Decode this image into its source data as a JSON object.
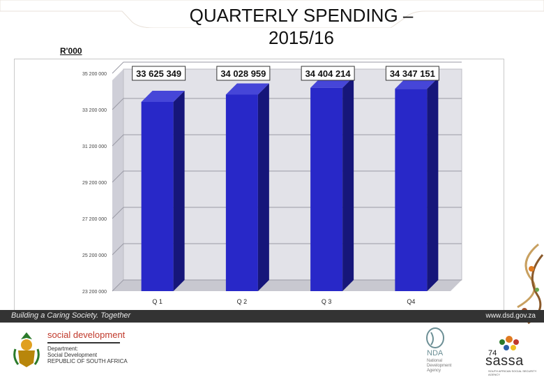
{
  "slide": {
    "title": "QUARTERLY SPENDING – 2015/16",
    "unit_label": "R'000",
    "page_number": "74"
  },
  "footer": {
    "tagline": "Building a Caring Society. Together",
    "website": "www.dsd.gov.za",
    "sd_brand": "social development",
    "sd_sub_line1": "Department:",
    "sd_sub_line2": "Social Development",
    "sd_sub_line3": "REPUBLIC OF SOUTH AFRICA",
    "nda_name": "NDA",
    "nda_sub_line1": "National",
    "nda_sub_line2": "Development",
    "nda_sub_line3": "Agency",
    "sassa_name": "sassa",
    "sassa_sub": "SOUTH AFRICAN SOCIAL SECURITY AGENCY"
  },
  "chart_data": {
    "type": "bar",
    "categories": [
      "Q 1",
      "Q 2",
      "Q 3",
      "Q4"
    ],
    "values": [
      33625349,
      34028959,
      34404214,
      34347151
    ],
    "data_labels": [
      "33 625 349",
      "34 028 959",
      "34 404 214",
      "34 347 151"
    ],
    "ylim": [
      23200000,
      35200000
    ],
    "yticks": [
      23200000,
      25200000,
      27200000,
      29200000,
      31200000,
      33200000,
      35200000
    ],
    "ytick_labels": [
      "23 200 000",
      "25 200 000",
      "27 200 000",
      "29 200 000",
      "31 200 000",
      "33 200 000",
      "35 200 000"
    ],
    "grid": true,
    "style": "3d",
    "colors": {
      "bar_front": "#2828c8",
      "bar_side": "#16167a",
      "bar_top": "#4646d8",
      "wall": "#e2e2e8",
      "floor": "#c8c8d0"
    }
  }
}
